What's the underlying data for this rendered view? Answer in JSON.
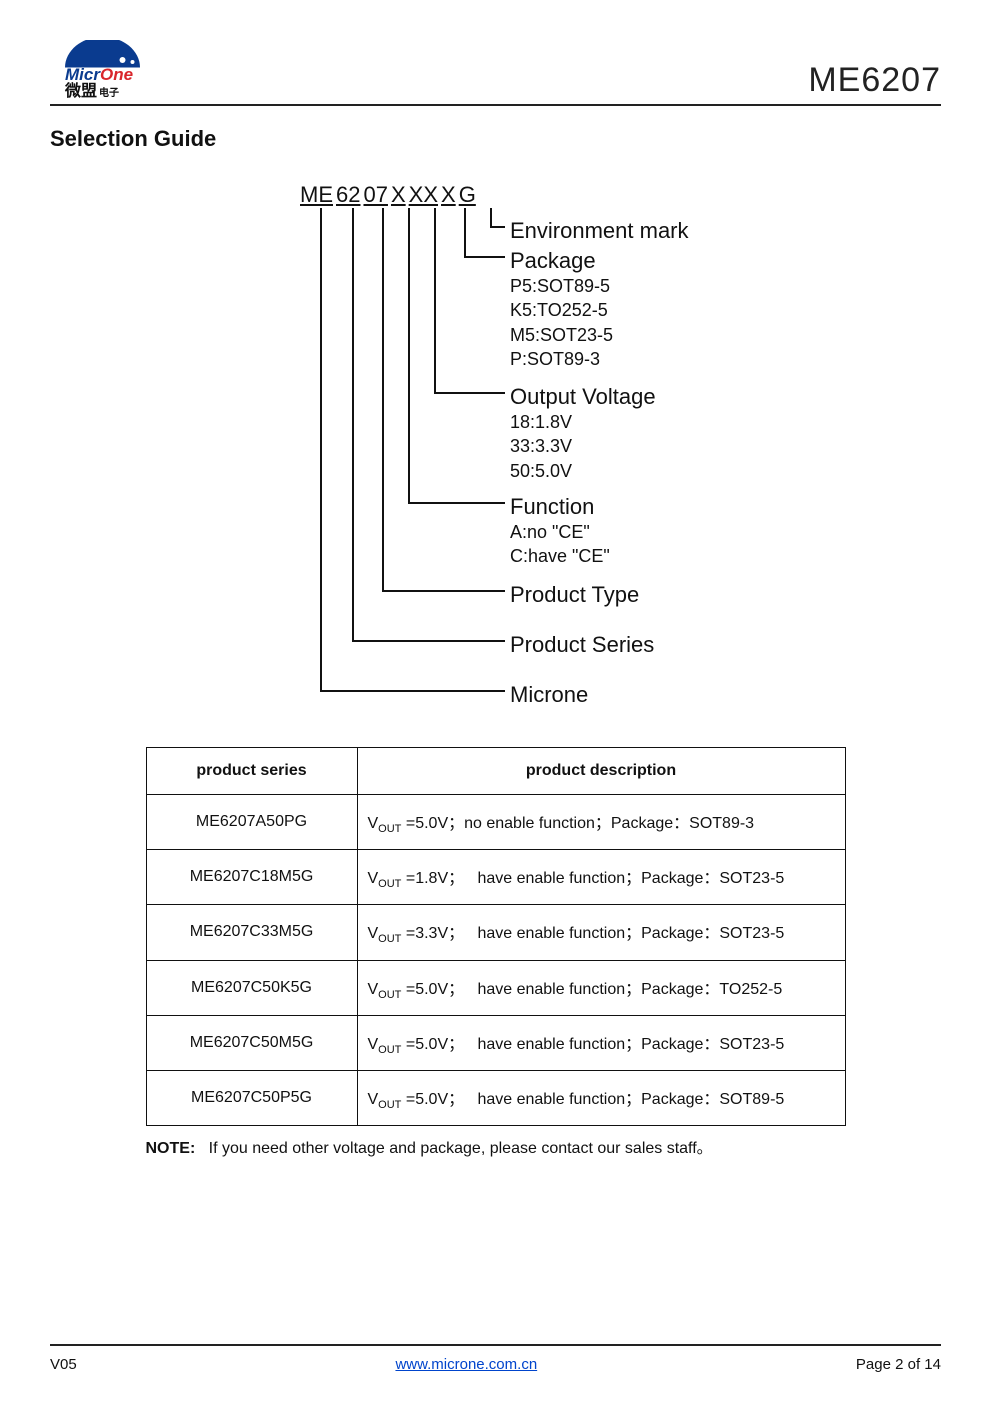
{
  "header": {
    "logo_brand_en_1": "Micr",
    "logo_brand_en_2": "One",
    "logo_brand_cn": "微盟",
    "logo_brand_cn_sub": "电子",
    "part_number": "ME6207"
  },
  "section_title": "Selection Guide",
  "partcode": {
    "segments": [
      "ME",
      "62",
      "07",
      "X",
      "XX",
      "X",
      "G"
    ]
  },
  "branches": [
    {
      "idx": 6,
      "label": "Environment mark",
      "sub": []
    },
    {
      "idx": 5,
      "label": "Package",
      "sub": [
        "P5:SOT89-5",
        "K5:TO252-5",
        "M5:SOT23-5",
        "P:SOT89-3"
      ]
    },
    {
      "idx": 4,
      "label": "Output Voltage",
      "sub": [
        "18:1.8V",
        "33:3.3V",
        "50:5.0V"
      ]
    },
    {
      "idx": 3,
      "label": "Function",
      "sub": [
        "A:no \"CE\"",
        "C:have  \"CE\""
      ]
    },
    {
      "idx": 2,
      "label": "Product Type",
      "sub": []
    },
    {
      "idx": 1,
      "label": "Product Series",
      "sub": []
    },
    {
      "idx": 0,
      "label": "Microne",
      "sub": []
    }
  ],
  "diagram_style": {
    "seg_x": [
      20,
      52,
      82,
      108,
      134,
      164,
      190
    ],
    "branch_y_label": [
      36,
      66,
      202,
      312,
      400,
      450,
      500
    ],
    "hline_y": [
      44,
      74,
      210,
      320,
      408,
      458,
      508
    ],
    "vline_top": 26,
    "hline_end_x": 205,
    "line_color": "#111111"
  },
  "table": {
    "headers": [
      "product series",
      "product description"
    ],
    "rows": [
      {
        "series": "ME6207A50PG",
        "vout": "5.0V",
        "enable": "no enable function",
        "pkg": "SOT89-3"
      },
      {
        "series": "ME6207C18M5G",
        "vout": "1.8V",
        "enable": "have enable function",
        "pkg": "SOT23-5"
      },
      {
        "series": "ME6207C33M5G",
        "vout": "3.3V",
        "enable": "have enable function",
        "pkg": "SOT23-5"
      },
      {
        "series": "ME6207C50K5G",
        "vout": "5.0V",
        "enable": "have enable function",
        "pkg": "TO252-5"
      },
      {
        "series": "ME6207C50M5G",
        "vout": "5.0V",
        "enable": "have enable function",
        "pkg": "SOT23-5"
      },
      {
        "series": "ME6207C50P5G",
        "vout": "5.0V",
        "enable": "have enable function",
        "pkg": "SOT89-5"
      }
    ]
  },
  "note_label": "NOTE:",
  "note_text": "If you need other voltage and package, please contact our sales staff。",
  "footer": {
    "version": "V05",
    "url": "www.microne.com.cn",
    "page": "Page 2 of 14"
  }
}
